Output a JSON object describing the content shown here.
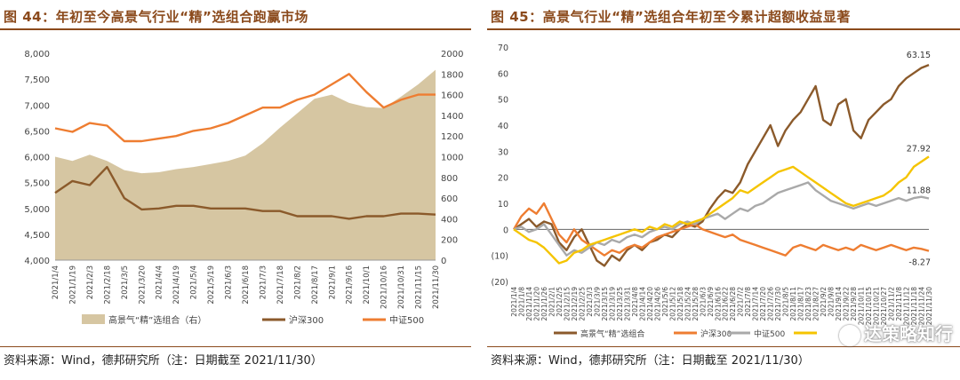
{
  "source_label": "资料来源：Wind，德邦研究所（注：日期截至 2021/11/30）",
  "watermark": "达策略知行",
  "colors": {
    "title": "#8B4A1C",
    "portfolio": "#D6C6A2",
    "portfolio_line": "#A68455",
    "hs300": "#8B5A2B",
    "zz500": "#EE7D31",
    "gray": "#A9A9A9",
    "yellow": "#F5C400"
  },
  "chart_data": [
    {
      "id": "fig44",
      "type": "area",
      "title": "图 44：年初至今高景气行业“精”选组合跑赢市场",
      "x_dates": [
        "2021/1/4",
        "2021/1/19",
        "2021/2/3",
        "2021/2/18",
        "2021/3/5",
        "2021/3/20",
        "2021/4/4",
        "2021/4/19",
        "2021/5/4",
        "2021/5/19",
        "2021/6/3",
        "2021/6/18",
        "2021/7/3",
        "2021/7/18",
        "2021/8/2",
        "2021/8/17",
        "2021/9/1",
        "2021/9/16",
        "2021/10/1",
        "2021/10/16",
        "2021/10/31",
        "2021/11/15",
        "2021/11/30"
      ],
      "y_left_ticks": [
        "4,000",
        "4,500",
        "5,000",
        "5,500",
        "6,000",
        "6,500",
        "7,000",
        "7,500",
        "8,000"
      ],
      "y_left_range": [
        4000,
        8000
      ],
      "y_right_ticks": [
        "0",
        "200",
        "400",
        "600",
        "800",
        "1000",
        "1200",
        "1400",
        "1600",
        "1800",
        "2000"
      ],
      "y_right_range": [
        0,
        2000
      ],
      "series": [
        {
          "name": "高景气“精”选组合（右）",
          "axis": "right",
          "style": "area",
          "values": [
            1000,
            960,
            1020,
            960,
            870,
            840,
            850,
            880,
            900,
            930,
            960,
            1010,
            1130,
            1280,
            1420,
            1560,
            1600,
            1520,
            1480,
            1470,
            1580,
            1700,
            1840
          ]
        },
        {
          "name": "沪深300",
          "axis": "left",
          "style": "line",
          "values": [
            5300,
            5530,
            5450,
            5800,
            5200,
            4980,
            5000,
            5050,
            5050,
            5000,
            5000,
            5000,
            4950,
            4950,
            4850,
            4850,
            4850,
            4800,
            4850,
            4850,
            4900,
            4900,
            4880
          ]
        },
        {
          "name": "中证500",
          "axis": "left",
          "style": "line",
          "values": [
            6550,
            6480,
            6650,
            6600,
            6300,
            6300,
            6350,
            6400,
            6500,
            6550,
            6650,
            6800,
            6950,
            6950,
            7100,
            7200,
            7400,
            7600,
            7250,
            6950,
            7100,
            7200,
            7200
          ]
        }
      ]
    },
    {
      "id": "fig45",
      "type": "line",
      "title": "图 45：高景气行业“精”选组合年初至今累计超额收益显著",
      "x_dates": [
        "2021/1/4",
        "2021/1/8",
        "2021/1/14",
        "2021/1/20",
        "2021/1/26",
        "2021/2/1",
        "2021/2/5",
        "2021/2/15",
        "2021/2/19",
        "2021/2/25",
        "2021/3/3",
        "2021/3/9",
        "2021/3/15",
        "2021/3/19",
        "2021/3/25",
        "2021/3/31",
        "2021/4/8",
        "2021/4/14",
        "2021/4/20",
        "2021/4/26",
        "2021/5/6",
        "2021/5/12",
        "2021/5/18",
        "2021/5/24",
        "2021/5/28",
        "2021/6/3",
        "2021/6/9",
        "2021/6/16",
        "2021/6/22",
        "2021/6/28",
        "2021/7/2",
        "2021/7/8",
        "2021/7/14",
        "2021/7/20",
        "2021/7/26",
        "2021/7/30",
        "2021/8/5",
        "2021/8/11",
        "2021/8/17",
        "2021/8/23",
        "2021/8/27",
        "2021/9/2",
        "2021/9/8",
        "2021/9/14",
        "2021/9/22",
        "2021/9/28",
        "2021/10/11",
        "2021/10/15",
        "2021/10/21",
        "2021/10/27",
        "2021/11/2",
        "2021/11/8",
        "2021/11/12",
        "2021/11/18",
        "2021/11/24",
        "2021/11/30"
      ],
      "y_ticks": [
        "(20)",
        "(10)",
        "0",
        "10",
        "20",
        "30",
        "40",
        "50",
        "60",
        "70"
      ],
      "y_range": [
        -20,
        70
      ],
      "series": [
        {
          "name": "高景气“精”选组合",
          "color_key": "hs300",
          "values": [
            0,
            2,
            4,
            1,
            3,
            2,
            -5,
            -8,
            -3,
            0,
            -6,
            -12,
            -14,
            -10,
            -12,
            -8,
            -6,
            -8,
            -5,
            -4,
            -2,
            -3,
            0,
            2,
            1,
            3,
            8,
            12,
            15,
            14,
            18,
            25,
            30,
            35,
            40,
            32,
            38,
            42,
            45,
            50,
            55,
            42,
            40,
            48,
            50,
            38,
            35,
            42,
            45,
            48,
            50,
            55,
            58,
            60,
            62,
            63.15
          ]
        },
        {
          "name": "沪深300",
          "color_key": "zz500",
          "values": [
            0,
            5,
            8,
            6,
            10,
            4,
            -2,
            -5,
            0,
            -4,
            -6,
            -8,
            -10,
            -8,
            -9,
            -7,
            -6,
            -7,
            -5,
            -3,
            -2,
            -1,
            0,
            1,
            2,
            0,
            -1,
            -2,
            -3,
            -2,
            -4,
            -5,
            -6,
            -7,
            -8,
            -9,
            -10,
            -7,
            -6,
            -7,
            -8,
            -6,
            -7,
            -8,
            -7,
            -8,
            -6,
            -7,
            -8,
            -7,
            -6,
            -7,
            -8,
            -7,
            -7.5,
            -8.27
          ]
        },
        {
          "name": "中证500",
          "color_key": "gray",
          "values": [
            0,
            1,
            -1,
            0,
            2,
            -2,
            -6,
            -10,
            -8,
            -9,
            -7,
            -5,
            -6,
            -4,
            -5,
            -3,
            -2,
            -3,
            -1,
            0,
            1,
            0,
            2,
            3,
            2,
            4,
            5,
            6,
            4,
            6,
            8,
            7,
            9,
            10,
            12,
            14,
            15,
            16,
            17,
            18,
            15,
            13,
            11,
            10,
            9,
            8,
            9,
            10,
            9,
            10,
            11,
            12,
            11,
            12,
            12.5,
            11.88
          ]
        },
        {
          "name": "",
          "color_key": "yellow",
          "values": [
            0,
            -2,
            -4,
            -5,
            -7,
            -10,
            -13,
            -12,
            -9,
            -8,
            -6,
            -5,
            -4,
            -3,
            -2,
            -1,
            0,
            -1,
            1,
            0,
            2,
            1,
            3,
            2,
            3,
            4,
            6,
            8,
            10,
            12,
            15,
            14,
            16,
            18,
            20,
            22,
            23,
            24,
            22,
            20,
            18,
            16,
            14,
            12,
            10,
            9,
            10,
            11,
            12,
            13,
            15,
            18,
            20,
            24,
            26,
            27.92
          ]
        }
      ],
      "annotations": [
        {
          "text": "63.15",
          "series": 0
        },
        {
          "text": "27.92",
          "series": 3
        },
        {
          "text": "11.88",
          "series": 2
        },
        {
          "text": "-8.27",
          "series": 1
        }
      ]
    }
  ]
}
